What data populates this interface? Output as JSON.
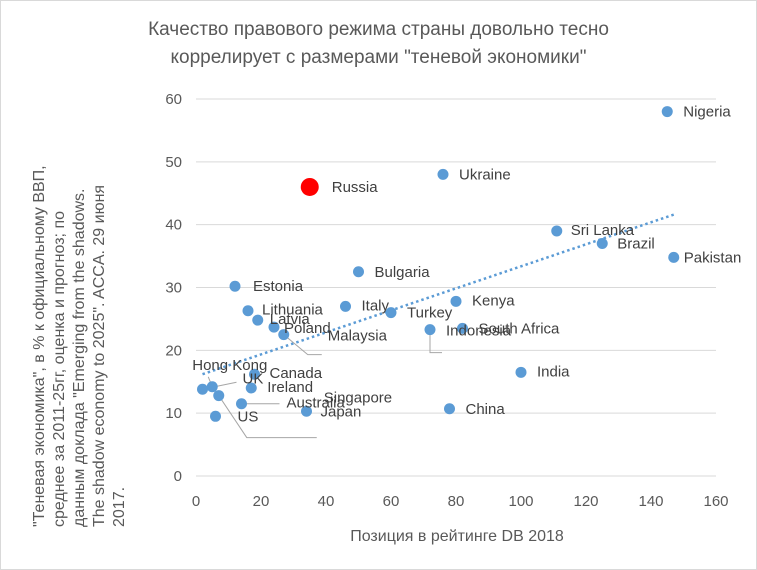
{
  "chart_data": {
    "type": "scatter",
    "title": [
      "Качество правового режима страны довольно тесно",
      "коррелирует с размерами \"теневой экономики\""
    ],
    "xlabel": "Позиция в рейтинге DB 2018",
    "ylabel": [
      "\"Теневая экономика\", в % к официальному ВВП,",
      "среднее за 2011-25гг, оценка и прогноз; по",
      "данным доклада \"Emerging from the shadows.",
      "The shadow economy to 2025\". ACCA. 29 июня",
      "2017."
    ],
    "xlim": [
      0,
      160
    ],
    "ylim": [
      0,
      60
    ],
    "xticks": [
      0,
      20,
      40,
      60,
      80,
      100,
      120,
      140,
      160
    ],
    "yticks": [
      0,
      10,
      20,
      30,
      40,
      50,
      60
    ],
    "grid": "horizontal",
    "trendline": {
      "style": "dotted",
      "x": [
        2,
        147
      ],
      "y": [
        16.2,
        41.6
      ]
    },
    "colors": {
      "points": "#5b9bd5",
      "highlight": "#ff0000",
      "trendline": "#5b9bd5",
      "grid": "#d9d9d9"
    },
    "points": [
      {
        "label": "Nigeria",
        "x": 145,
        "y": 58
      },
      {
        "label": "Ukraine",
        "x": 76,
        "y": 48
      },
      {
        "label": "Russia",
        "x": 35,
        "y": 46,
        "highlight": true
      },
      {
        "label": "Sri Lanka",
        "x": 111,
        "y": 39
      },
      {
        "label": "Brazil",
        "x": 125,
        "y": 37
      },
      {
        "label": "Pakistan",
        "x": 147,
        "y": 34.8
      },
      {
        "label": "Bulgaria",
        "x": 50,
        "y": 32.5
      },
      {
        "label": "Estonia",
        "x": 12,
        "y": 30.2
      },
      {
        "label": "Kenya",
        "x": 80,
        "y": 27.8
      },
      {
        "label": "Italy",
        "x": 46,
        "y": 27
      },
      {
        "label": "Turkey",
        "x": 60,
        "y": 26
      },
      {
        "label": "Lithuania",
        "x": 16,
        "y": 26.3
      },
      {
        "label": "Latvia",
        "x": 19,
        "y": 24.8
      },
      {
        "label": "Poland",
        "x": 24,
        "y": 23.7
      },
      {
        "label": "Malaysia",
        "x": 27,
        "y": 22.5
      },
      {
        "label": "South Africa",
        "x": 82,
        "y": 23.5
      },
      {
        "label": "Indonesia",
        "x": 72,
        "y": 23.3
      },
      {
        "label": "India",
        "x": 100,
        "y": 16.5
      },
      {
        "label": "Canada",
        "x": 18,
        "y": 16.2
      },
      {
        "label": "Hong Kong",
        "x": 5,
        "y": 14.2
      },
      {
        "label": "Ireland",
        "x": 17,
        "y": 14
      },
      {
        "label": "UK",
        "x": 2,
        "y": 13.8
      },
      {
        "label": "Australia",
        "x": 14,
        "y": 11.5
      },
      {
        "label": "US",
        "x": 6,
        "y": 9.5
      },
      {
        "label": "Japan",
        "x": 34,
        "y": 10.3
      },
      {
        "label": "Singapore",
        "x": 7,
        "y": 12.8
      },
      {
        "label": "China",
        "x": 78,
        "y": 10.7
      }
    ]
  }
}
